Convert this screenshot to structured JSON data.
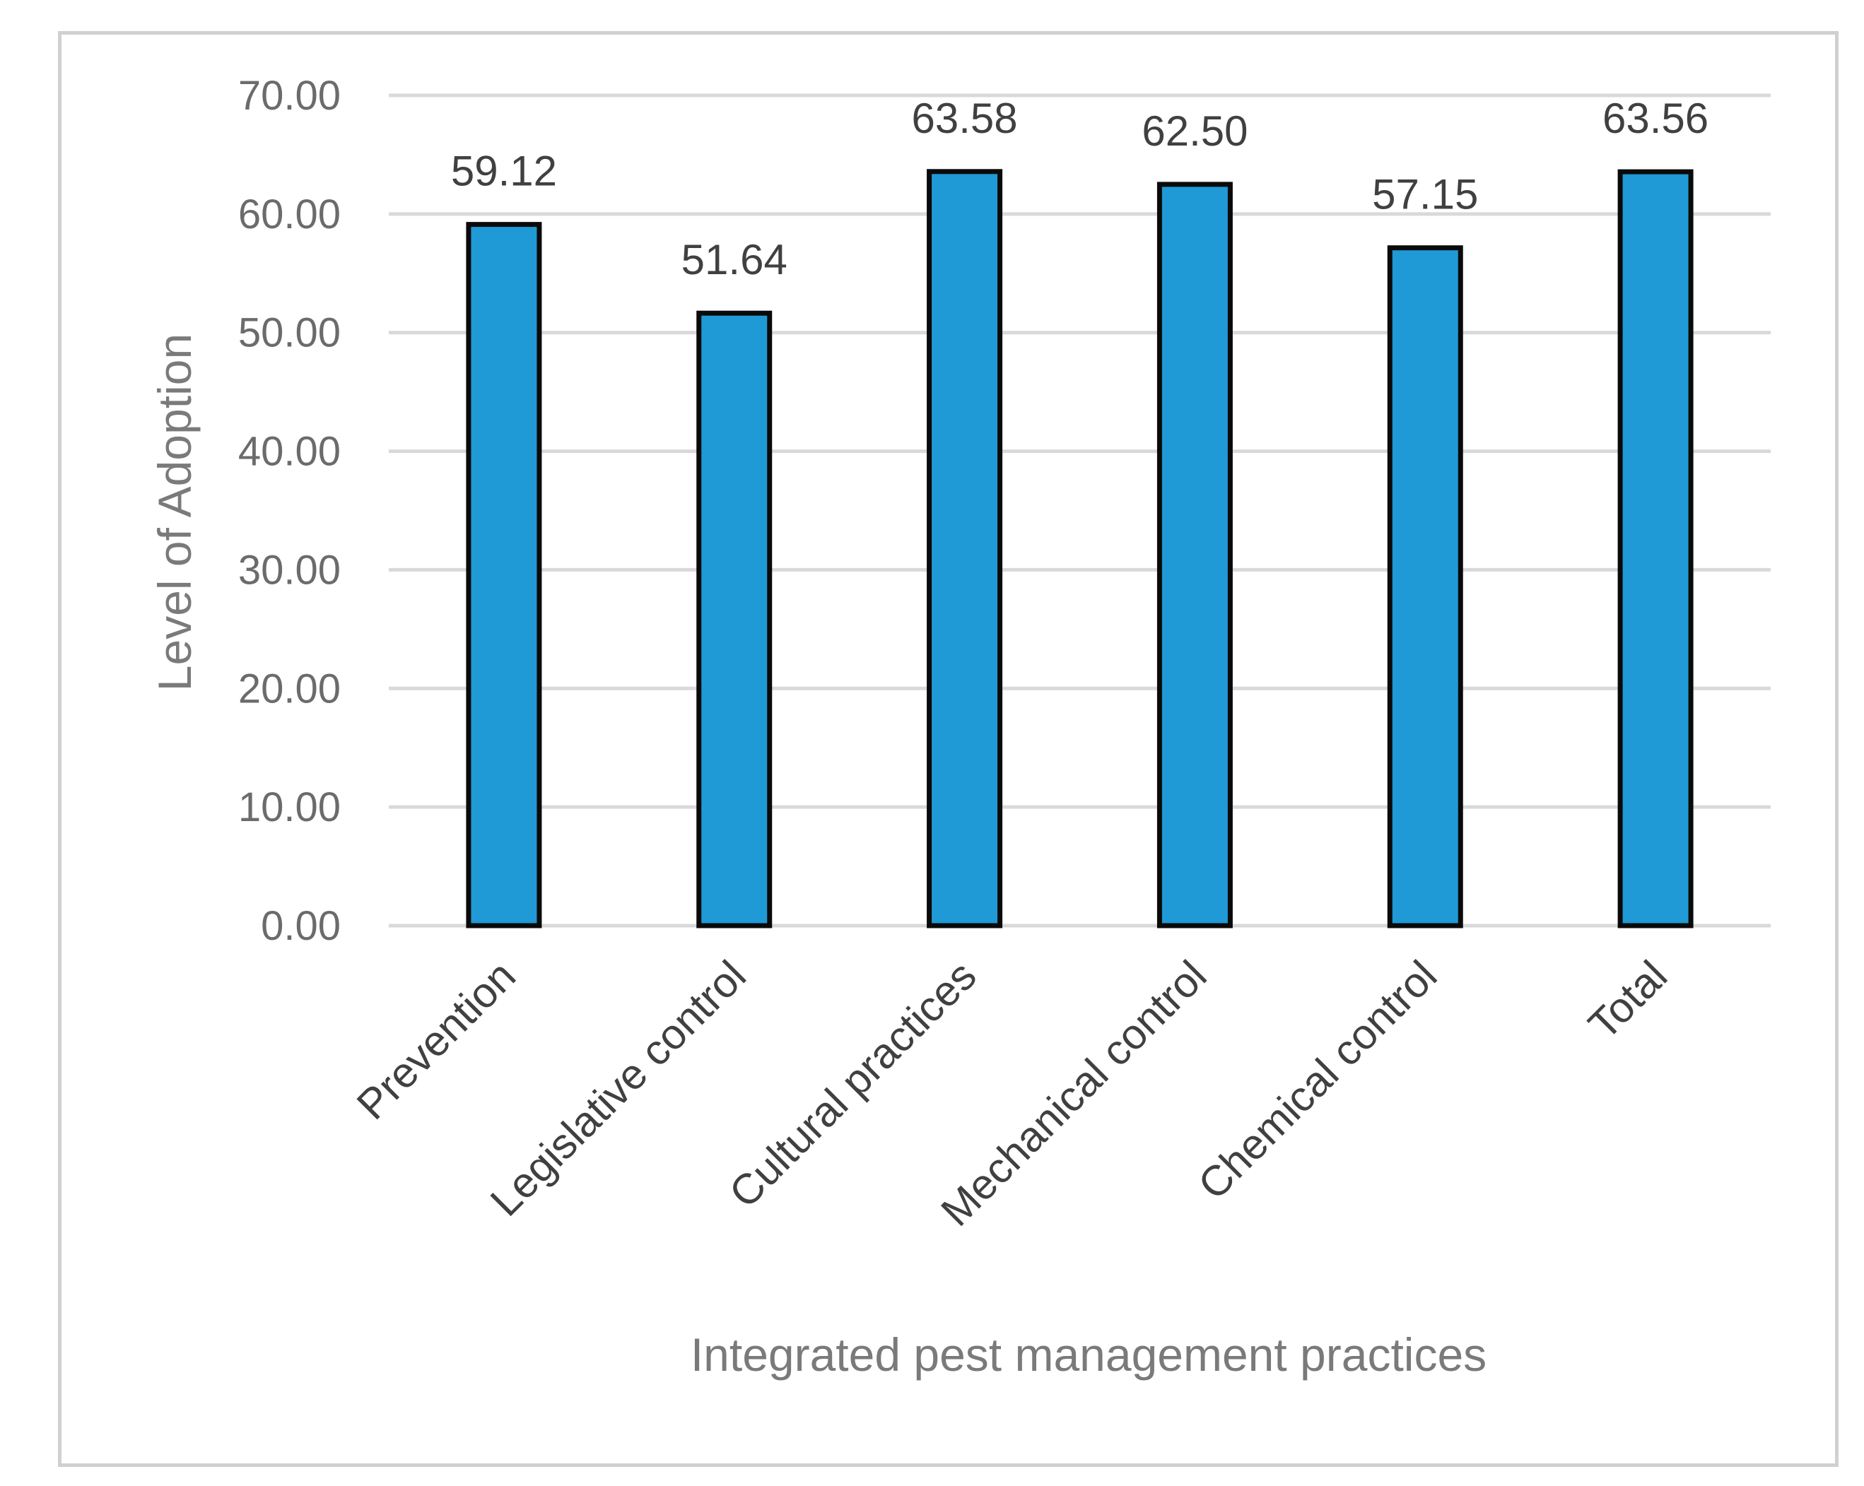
{
  "chart_data": {
    "type": "bar",
    "title": "",
    "xlabel": "Integrated pest management practices",
    "ylabel": "Level of Adoption",
    "categories": [
      "Prevention",
      "Legislative control",
      "Cultural practices",
      "Mechanical control",
      "Chemical control",
      "Total"
    ],
    "values": [
      59.12,
      51.64,
      63.58,
      62.5,
      57.15,
      63.56
    ],
    "value_labels": [
      "59.12",
      "51.64",
      "63.58",
      "62.50",
      "57.15",
      "63.56"
    ],
    "ylim": [
      0,
      70
    ],
    "yticks": [
      0,
      10,
      20,
      30,
      40,
      50,
      60,
      70
    ],
    "ytick_labels": [
      "0.00",
      "10.00",
      "20.00",
      "30.00",
      "40.00",
      "50.00",
      "60.00",
      "70.00"
    ],
    "grid": true,
    "legend": "none"
  },
  "colors": {
    "bar_fill": "#1f9ad6",
    "bar_stroke": "#0a0a0a",
    "gridline": "#d9d9d9",
    "frame": "#d0d0d0"
  }
}
